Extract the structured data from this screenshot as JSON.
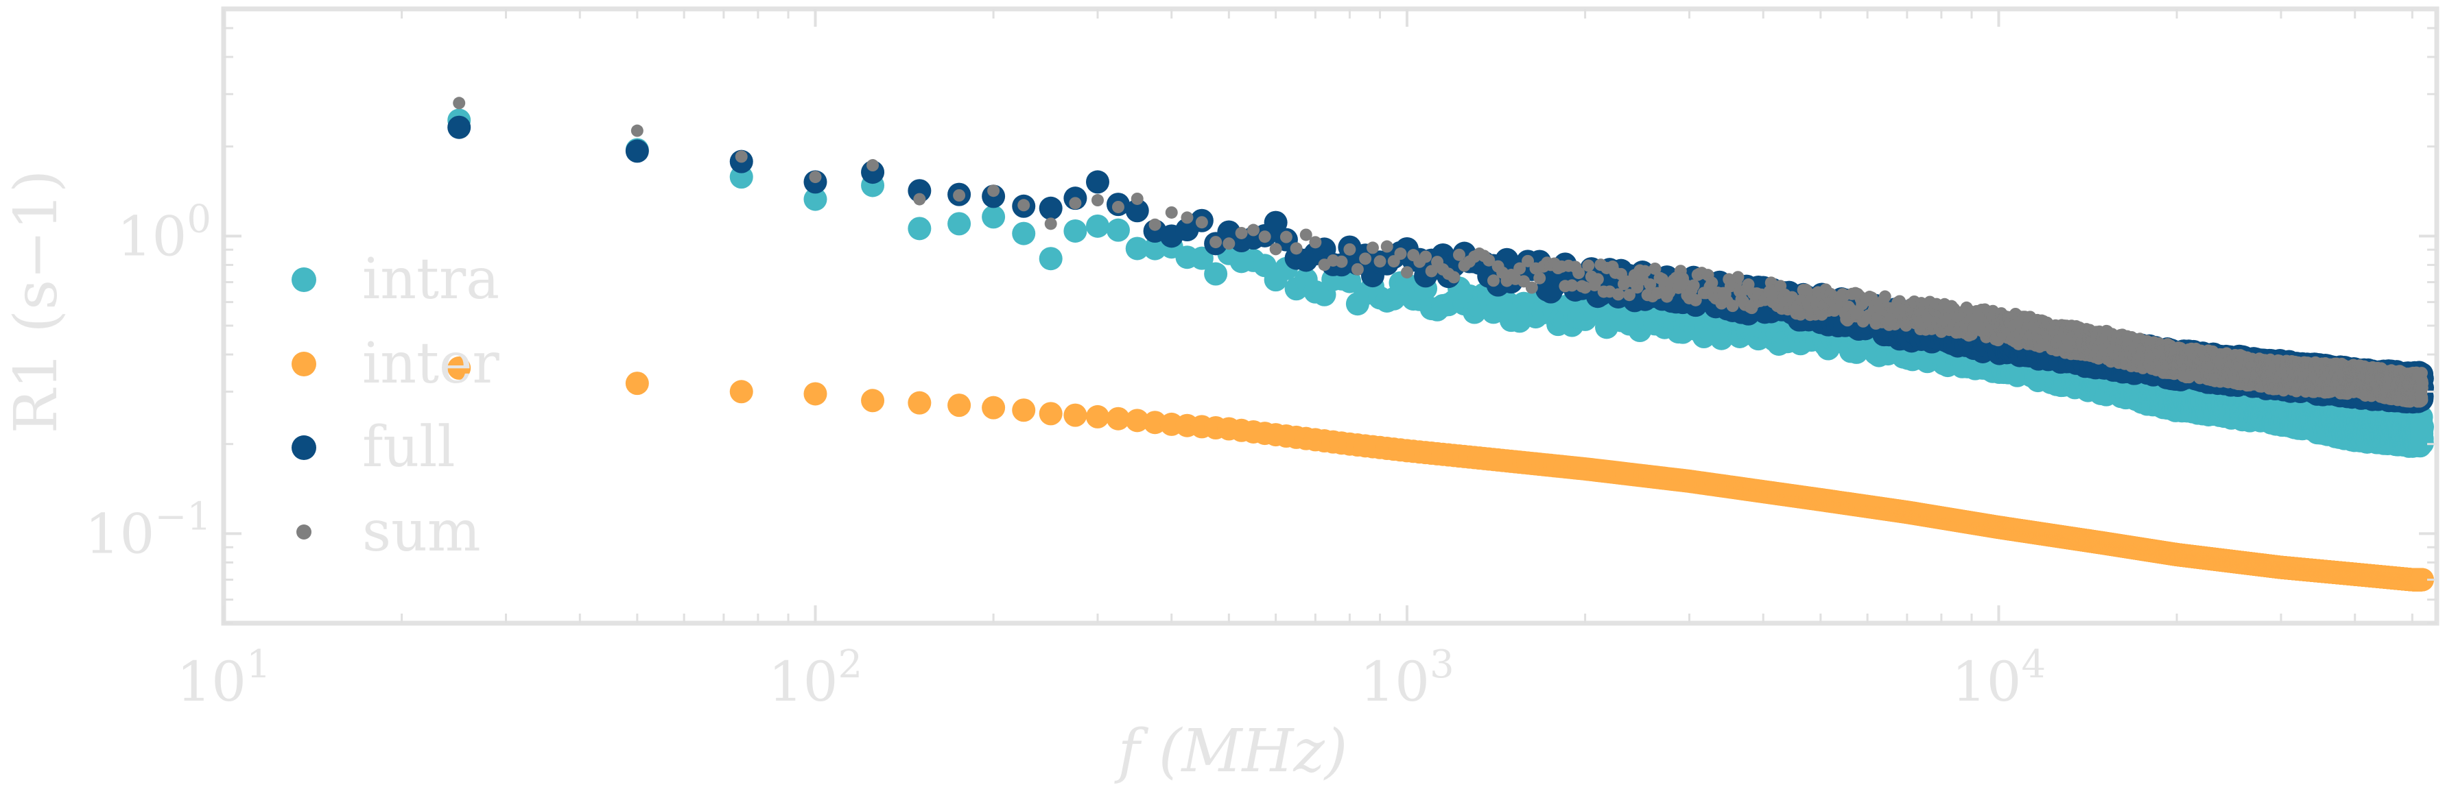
{
  "chart_data": {
    "type": "scatter",
    "xlabel": "f (MHz)",
    "ylabel": "R1 (s−1)",
    "xscale": "log",
    "yscale": "log",
    "xlim": [
      10,
      55000
    ],
    "ylim": [
      0.05,
      5.8
    ],
    "xticks": [
      {
        "value": 10,
        "mantissa": "10",
        "exp": "1"
      },
      {
        "value": 100,
        "mantissa": "10",
        "exp": "2"
      },
      {
        "value": 1000,
        "mantissa": "10",
        "exp": "3"
      },
      {
        "value": 10000,
        "mantissa": "10",
        "exp": "4"
      }
    ],
    "yticks": [
      {
        "value": 0.1,
        "mantissa": "10",
        "exp": "−1"
      },
      {
        "value": 1,
        "mantissa": "10",
        "exp": "0"
      }
    ],
    "grid": false,
    "legend_position": "left",
    "series": [
      {
        "name": "intra",
        "color": "#45b8c4",
        "marker_size": "large",
        "x": [
          25,
          50,
          75,
          100,
          125,
          150,
          175,
          200,
          225,
          250,
          275,
          300,
          350,
          400,
          500,
          600,
          800,
          1000,
          1500,
          2000,
          3000,
          5000,
          7000,
          10000,
          15000,
          20000,
          30000,
          40000,
          50000
        ],
        "y": [
          2.45,
          1.95,
          1.58,
          1.33,
          1.48,
          1.06,
          1.1,
          1.16,
          1.02,
          0.84,
          1.04,
          1.08,
          0.95,
          0.82,
          0.8,
          0.74,
          0.65,
          0.63,
          0.57,
          0.56,
          0.52,
          0.47,
          0.43,
          0.39,
          0.33,
          0.29,
          0.26,
          0.23,
          0.22
        ]
      },
      {
        "name": "inter",
        "color": "#ffab43",
        "marker_size": "large",
        "x": [
          25,
          50,
          75,
          100,
          125,
          150,
          175,
          200,
          225,
          250,
          275,
          300,
          350,
          400,
          500,
          600,
          800,
          1000,
          1500,
          2000,
          3000,
          5000,
          7000,
          10000,
          15000,
          20000,
          30000,
          40000,
          50000
        ],
        "y": [
          0.36,
          0.32,
          0.3,
          0.295,
          0.28,
          0.275,
          0.27,
          0.265,
          0.26,
          0.253,
          0.25,
          0.247,
          0.24,
          0.233,
          0.225,
          0.215,
          0.2,
          0.19,
          0.175,
          0.165,
          0.15,
          0.13,
          0.118,
          0.105,
          0.093,
          0.085,
          0.077,
          0.073,
          0.07
        ]
      },
      {
        "name": "full",
        "color": "#0b4c80",
        "marker_size": "large",
        "x": [
          25,
          50,
          75,
          100,
          125,
          150,
          175,
          200,
          225,
          250,
          275,
          300,
          350,
          400,
          500,
          600,
          800,
          1000,
          1500,
          2000,
          3000,
          5000,
          7000,
          10000,
          15000,
          20000,
          30000,
          40000,
          50000
        ],
        "y": [
          2.32,
          1.93,
          1.78,
          1.52,
          1.64,
          1.42,
          1.38,
          1.36,
          1.26,
          1.24,
          1.34,
          1.52,
          1.14,
          1.1,
          1.03,
          0.99,
          0.83,
          0.82,
          0.75,
          0.71,
          0.65,
          0.57,
          0.5,
          0.45,
          0.4,
          0.37,
          0.34,
          0.32,
          0.31
        ]
      },
      {
        "name": "sum",
        "color": "#7f7f7f",
        "marker_size": "small",
        "x": [
          25,
          50,
          75,
          100,
          125,
          150,
          175,
          200,
          225,
          250,
          275,
          300,
          350,
          400,
          500,
          600,
          800,
          1000,
          1500,
          2000,
          3000,
          5000,
          7000,
          10000,
          15000,
          20000,
          30000,
          40000,
          50000
        ],
        "y": [
          2.8,
          2.26,
          1.85,
          1.58,
          1.73,
          1.33,
          1.37,
          1.42,
          1.27,
          1.1,
          1.29,
          1.32,
          1.19,
          1.08,
          1.03,
          0.97,
          0.86,
          0.82,
          0.76,
          0.73,
          0.68,
          0.6,
          0.55,
          0.5,
          0.43,
          0.38,
          0.34,
          0.33,
          0.31
        ]
      }
    ]
  }
}
